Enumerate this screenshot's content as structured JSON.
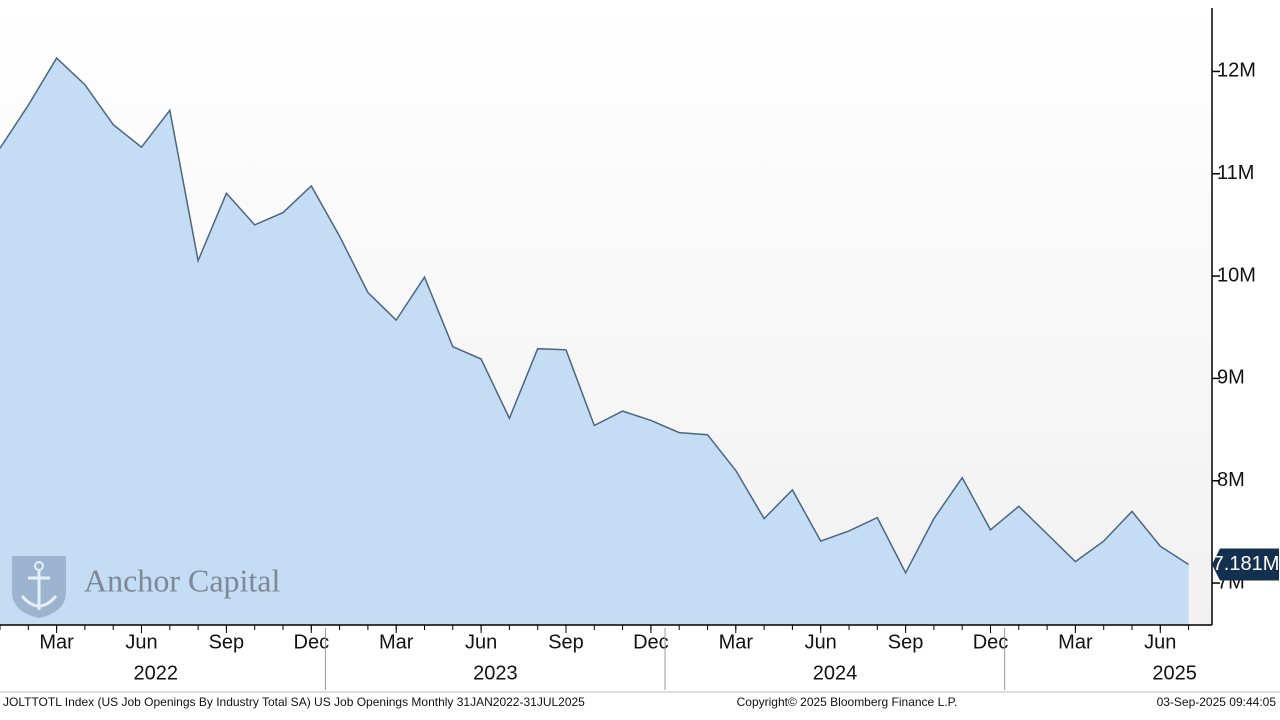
{
  "chart_data": {
    "type": "area",
    "x": [
      "2022-01",
      "2022-02",
      "2022-03",
      "2022-04",
      "2022-05",
      "2022-06",
      "2022-07",
      "2022-08",
      "2022-09",
      "2022-10",
      "2022-11",
      "2022-12",
      "2023-01",
      "2023-02",
      "2023-03",
      "2023-04",
      "2023-05",
      "2023-06",
      "2023-07",
      "2023-08",
      "2023-09",
      "2023-10",
      "2023-11",
      "2023-12",
      "2024-01",
      "2024-02",
      "2024-03",
      "2024-04",
      "2024-05",
      "2024-06",
      "2024-07",
      "2024-08",
      "2024-09",
      "2024-10",
      "2024-11",
      "2024-12",
      "2025-01",
      "2025-02",
      "2025-03",
      "2025-04",
      "2025-05",
      "2025-06",
      "2025-07"
    ],
    "series": [
      {
        "name": "US Job Openings",
        "color": "#4a6680",
        "fill": "#c4dcf4",
        "values": [
          11.25,
          11.67,
          12.13,
          11.87,
          11.48,
          11.26,
          11.62,
          10.15,
          10.81,
          10.5,
          10.62,
          10.88,
          10.39,
          9.84,
          9.57,
          9.99,
          9.31,
          9.19,
          8.61,
          9.29,
          9.28,
          8.54,
          8.68,
          8.59,
          8.47,
          8.45,
          8.1,
          7.63,
          7.91,
          7.41,
          7.51,
          7.64,
          7.1,
          7.63,
          8.03,
          7.52,
          7.75,
          7.48,
          7.21,
          7.41,
          7.7,
          7.36,
          7.181
        ]
      }
    ],
    "last_value_label": "7.181M",
    "ylim": [
      6.59,
      12.62
    ],
    "yticks": [
      {
        "value": 7,
        "label": "7M"
      },
      {
        "value": 8,
        "label": "8M"
      },
      {
        "value": 9,
        "label": "9M"
      },
      {
        "value": 10,
        "label": "10M"
      },
      {
        "value": 11,
        "label": "11M"
      },
      {
        "value": 12,
        "label": "12M"
      }
    ],
    "xticks": [
      {
        "value": "2022-03",
        "label": "Mar"
      },
      {
        "value": "2022-06",
        "label": "Jun"
      },
      {
        "value": "2022-09",
        "label": "Sep"
      },
      {
        "value": "2022-12",
        "label": "Dec"
      },
      {
        "value": "2023-03",
        "label": "Mar"
      },
      {
        "value": "2023-06",
        "label": "Jun"
      },
      {
        "value": "2023-09",
        "label": "Sep"
      },
      {
        "value": "2023-12",
        "label": "Dec"
      },
      {
        "value": "2024-03",
        "label": "Mar"
      },
      {
        "value": "2024-06",
        "label": "Jun"
      },
      {
        "value": "2024-09",
        "label": "Sep"
      },
      {
        "value": "2024-12",
        "label": "Dec"
      },
      {
        "value": "2025-03",
        "label": "Mar"
      },
      {
        "value": "2025-06",
        "label": "Jun"
      }
    ],
    "year_labels": [
      {
        "value": "2022-07",
        "label": "2022"
      },
      {
        "value": "2023-07",
        "label": "2023"
      },
      {
        "value": "2024-07",
        "label": "2024"
      },
      {
        "value": "2025-07",
        "label": "2025"
      }
    ],
    "watermark": "Anchor Capital",
    "footer_left": "JOLTTOTL Index (US Job Openings By Industry Total SA) US Job Openings  Monthly 31JAN2022-31JUL2025",
    "footer_center": "Copyright© 2025 Bloomberg Finance L.P.",
    "footer_right": "03-Sep-2025 09:44:05"
  }
}
